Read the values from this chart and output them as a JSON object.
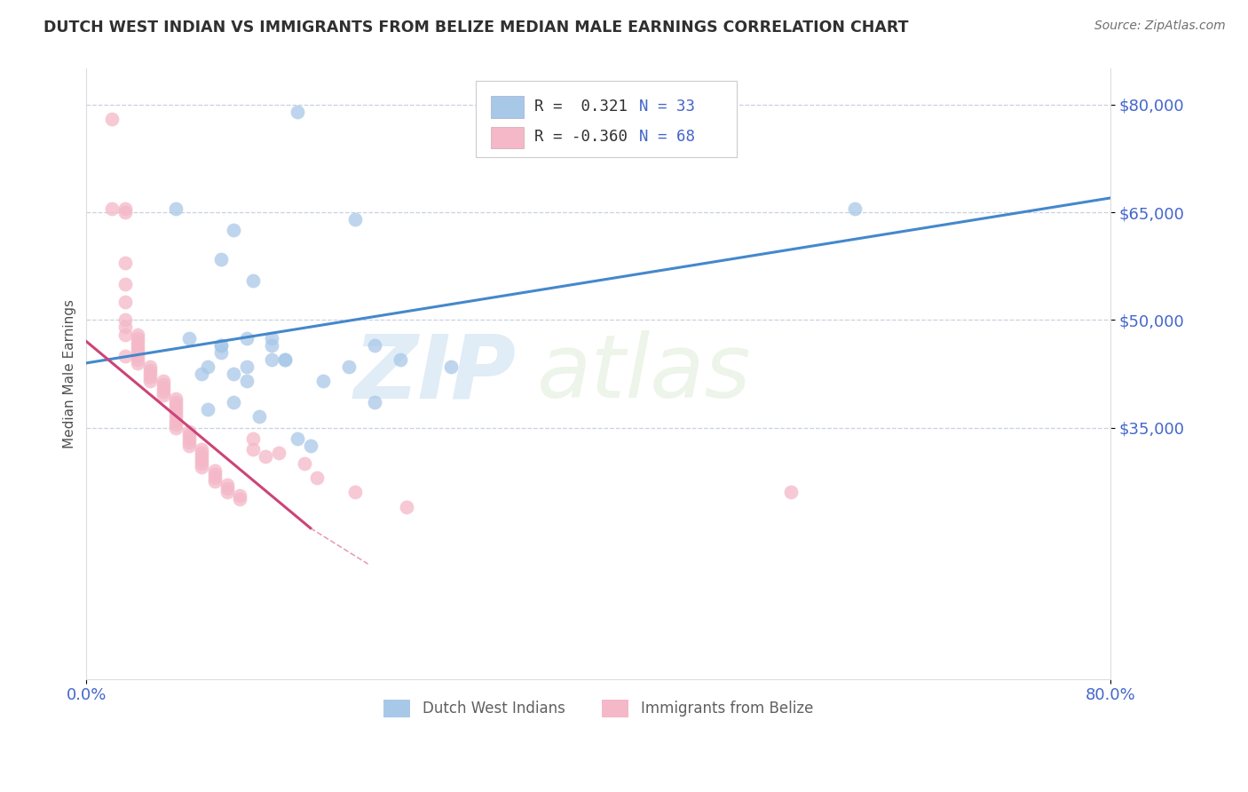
{
  "title": "DUTCH WEST INDIAN VS IMMIGRANTS FROM BELIZE MEDIAN MALE EARNINGS CORRELATION CHART",
  "source": "Source: ZipAtlas.com",
  "ylabel": "Median Male Earnings",
  "xlim": [
    0.0,
    0.8
  ],
  "ylim": [
    0,
    85000
  ],
  "yticks": [
    35000,
    50000,
    65000,
    80000
  ],
  "ytick_labels": [
    "$35,000",
    "$50,000",
    "$65,000",
    "$80,000"
  ],
  "xticks": [
    0.0,
    0.8
  ],
  "xtick_labels": [
    "0.0%",
    "80.0%"
  ],
  "watermark_zip": "ZIP",
  "watermark_atlas": "atlas",
  "legend_r1": "R =  0.321",
  "legend_n1": "N = 33",
  "legend_r2": "R = -0.360",
  "legend_n2": "N = 68",
  "blue_color": "#a8c8e8",
  "pink_color": "#f4b8c8",
  "line_blue": "#4488cc",
  "line_pink": "#cc4477",
  "title_color": "#303030",
  "axis_label_color": "#505050",
  "tick_color": "#4466cc",
  "blue_scatter_x": [
    0.165,
    0.07,
    0.115,
    0.105,
    0.13,
    0.21,
    0.285,
    0.6,
    0.09,
    0.185,
    0.225,
    0.245,
    0.095,
    0.145,
    0.125,
    0.115,
    0.125,
    0.225,
    0.115,
    0.095,
    0.135,
    0.165,
    0.175,
    0.08,
    0.125,
    0.145,
    0.105,
    0.105,
    0.145,
    0.105,
    0.155,
    0.205,
    0.155
  ],
  "blue_scatter_y": [
    79000,
    65500,
    62500,
    58500,
    55500,
    64000,
    43500,
    65500,
    42500,
    41500,
    46500,
    44500,
    43500,
    44500,
    43500,
    42500,
    41500,
    38500,
    38500,
    37500,
    36500,
    33500,
    32500,
    47500,
    47500,
    47500,
    46500,
    46500,
    46500,
    45500,
    44500,
    43500,
    44500
  ],
  "pink_scatter_x": [
    0.02,
    0.02,
    0.03,
    0.03,
    0.03,
    0.03,
    0.03,
    0.03,
    0.03,
    0.03,
    0.04,
    0.04,
    0.04,
    0.04,
    0.04,
    0.04,
    0.04,
    0.04,
    0.04,
    0.05,
    0.05,
    0.05,
    0.05,
    0.05,
    0.06,
    0.06,
    0.06,
    0.06,
    0.06,
    0.07,
    0.07,
    0.07,
    0.07,
    0.07,
    0.07,
    0.07,
    0.07,
    0.07,
    0.08,
    0.08,
    0.08,
    0.08,
    0.08,
    0.09,
    0.09,
    0.09,
    0.09,
    0.09,
    0.09,
    0.1,
    0.1,
    0.1,
    0.1,
    0.11,
    0.11,
    0.11,
    0.12,
    0.12,
    0.13,
    0.13,
    0.14,
    0.15,
    0.17,
    0.18,
    0.21,
    0.25,
    0.55,
    0.03
  ],
  "pink_scatter_y": [
    78000,
    65500,
    65500,
    65000,
    58000,
    55000,
    52500,
    50000,
    49000,
    48000,
    48000,
    47500,
    47000,
    46500,
    46000,
    45500,
    45000,
    44500,
    44000,
    43500,
    43000,
    42500,
    42000,
    41500,
    41500,
    41000,
    40500,
    40000,
    39500,
    39000,
    38500,
    38000,
    37500,
    37000,
    36500,
    36000,
    35500,
    35000,
    34500,
    34000,
    33500,
    33000,
    32500,
    32000,
    31500,
    31000,
    30500,
    30000,
    29500,
    29000,
    28500,
    28000,
    27500,
    27000,
    26500,
    26000,
    25500,
    25000,
    33500,
    32000,
    31000,
    31500,
    30000,
    28000,
    26000,
    24000,
    26000,
    45000
  ],
  "blue_line_x0": 0.0,
  "blue_line_x1": 0.8,
  "blue_line_y0": 44000,
  "blue_line_y1": 67000,
  "pink_line_x0": 0.0,
  "pink_line_x1": 0.175,
  "pink_line_y0": 47000,
  "pink_line_y1": 21000,
  "pink_line_dash_x0": 0.175,
  "pink_line_dash_x1": 0.22,
  "pink_line_dash_y0": 21000,
  "pink_line_dash_y1": 16000,
  "grid_color": "#c8d0e0",
  "background_color": "#ffffff"
}
